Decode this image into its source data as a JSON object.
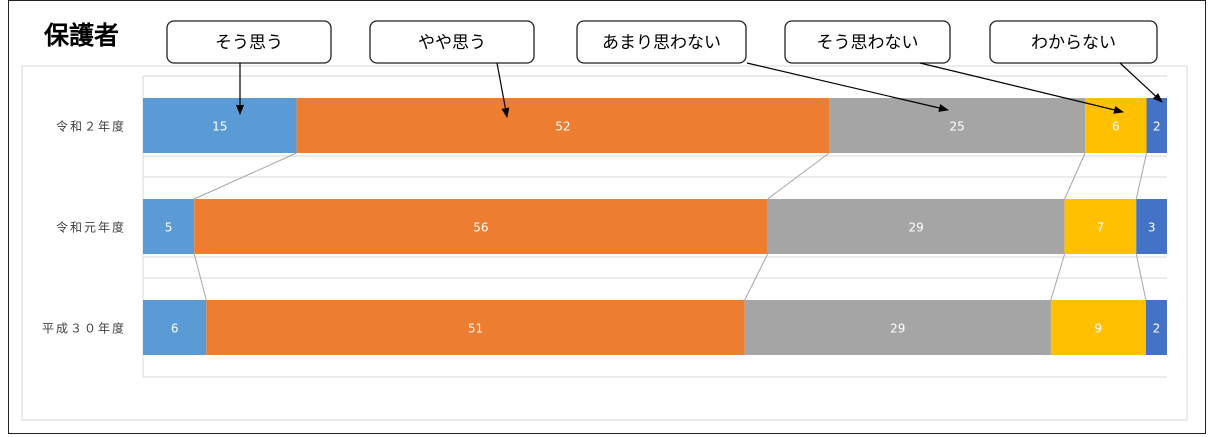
{
  "title": "保護者",
  "colors": {
    "series": [
      "#5b9bd5",
      "#ed7d31",
      "#a5a5a5",
      "#ffc000",
      "#4472c4"
    ],
    "value_label": "#ffffff",
    "category_label": "#404040",
    "connector": "#a6a6a6",
    "callout_border": "#222222"
  },
  "chart_data": {
    "type": "bar",
    "orientation": "horizontal",
    "stacked": "100%",
    "title": "保護者",
    "categories": [
      "令和２年度",
      "令和元年度",
      "平成３０年度"
    ],
    "series": [
      {
        "name": "そう思う",
        "values": [
          15,
          5,
          6
        ]
      },
      {
        "name": "やや思う",
        "values": [
          52,
          56,
          51
        ]
      },
      {
        "name": "あまり思わない",
        "values": [
          25,
          29,
          29
        ]
      },
      {
        "name": "そう思わない",
        "values": [
          6,
          7,
          9
        ]
      },
      {
        "name": "わからない",
        "values": [
          2,
          3,
          2
        ]
      }
    ],
    "data_labels": true,
    "legend": "callouts above chart with arrows",
    "grid": true,
    "series_lines": true
  }
}
